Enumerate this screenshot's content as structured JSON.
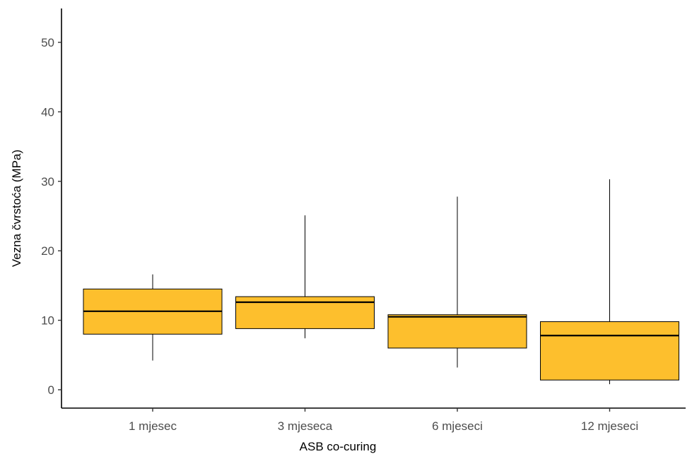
{
  "chart_data": {
    "type": "box",
    "title": "",
    "xlabel": "ASB co-curing",
    "ylabel": "Vezna čvrstoća (MPa)",
    "ylim": [
      -2,
      54.5
    ],
    "yticks": [
      0,
      10,
      20,
      30,
      40,
      50
    ],
    "ytick_labels": [
      "0",
      "10",
      "20",
      "30",
      "40",
      "50"
    ],
    "categories": [
      "1 mjesec",
      "3 mjeseca",
      "6 mjeseci",
      "12 mjeseci"
    ],
    "boxes": [
      {
        "category": "1 mjesec",
        "min": 4.2,
        "q1": 8.0,
        "median": 11.3,
        "q3": 14.5,
        "max": 16.6
      },
      {
        "category": "3 mjeseca",
        "min": 7.4,
        "q1": 8.8,
        "median": 12.6,
        "q3": 13.4,
        "max": 25.1
      },
      {
        "category": "6 mjeseci",
        "min": 3.2,
        "q1": 6.0,
        "median": 10.5,
        "q3": 10.8,
        "max": 27.8
      },
      {
        "category": "12 mjeseci",
        "min": 0.8,
        "q1": 1.4,
        "median": 7.8,
        "q3": 9.8,
        "max": 30.3
      }
    ],
    "box_fill": "#FDBF2D",
    "box_stroke": "#000000",
    "grid": false,
    "legend": "none"
  }
}
